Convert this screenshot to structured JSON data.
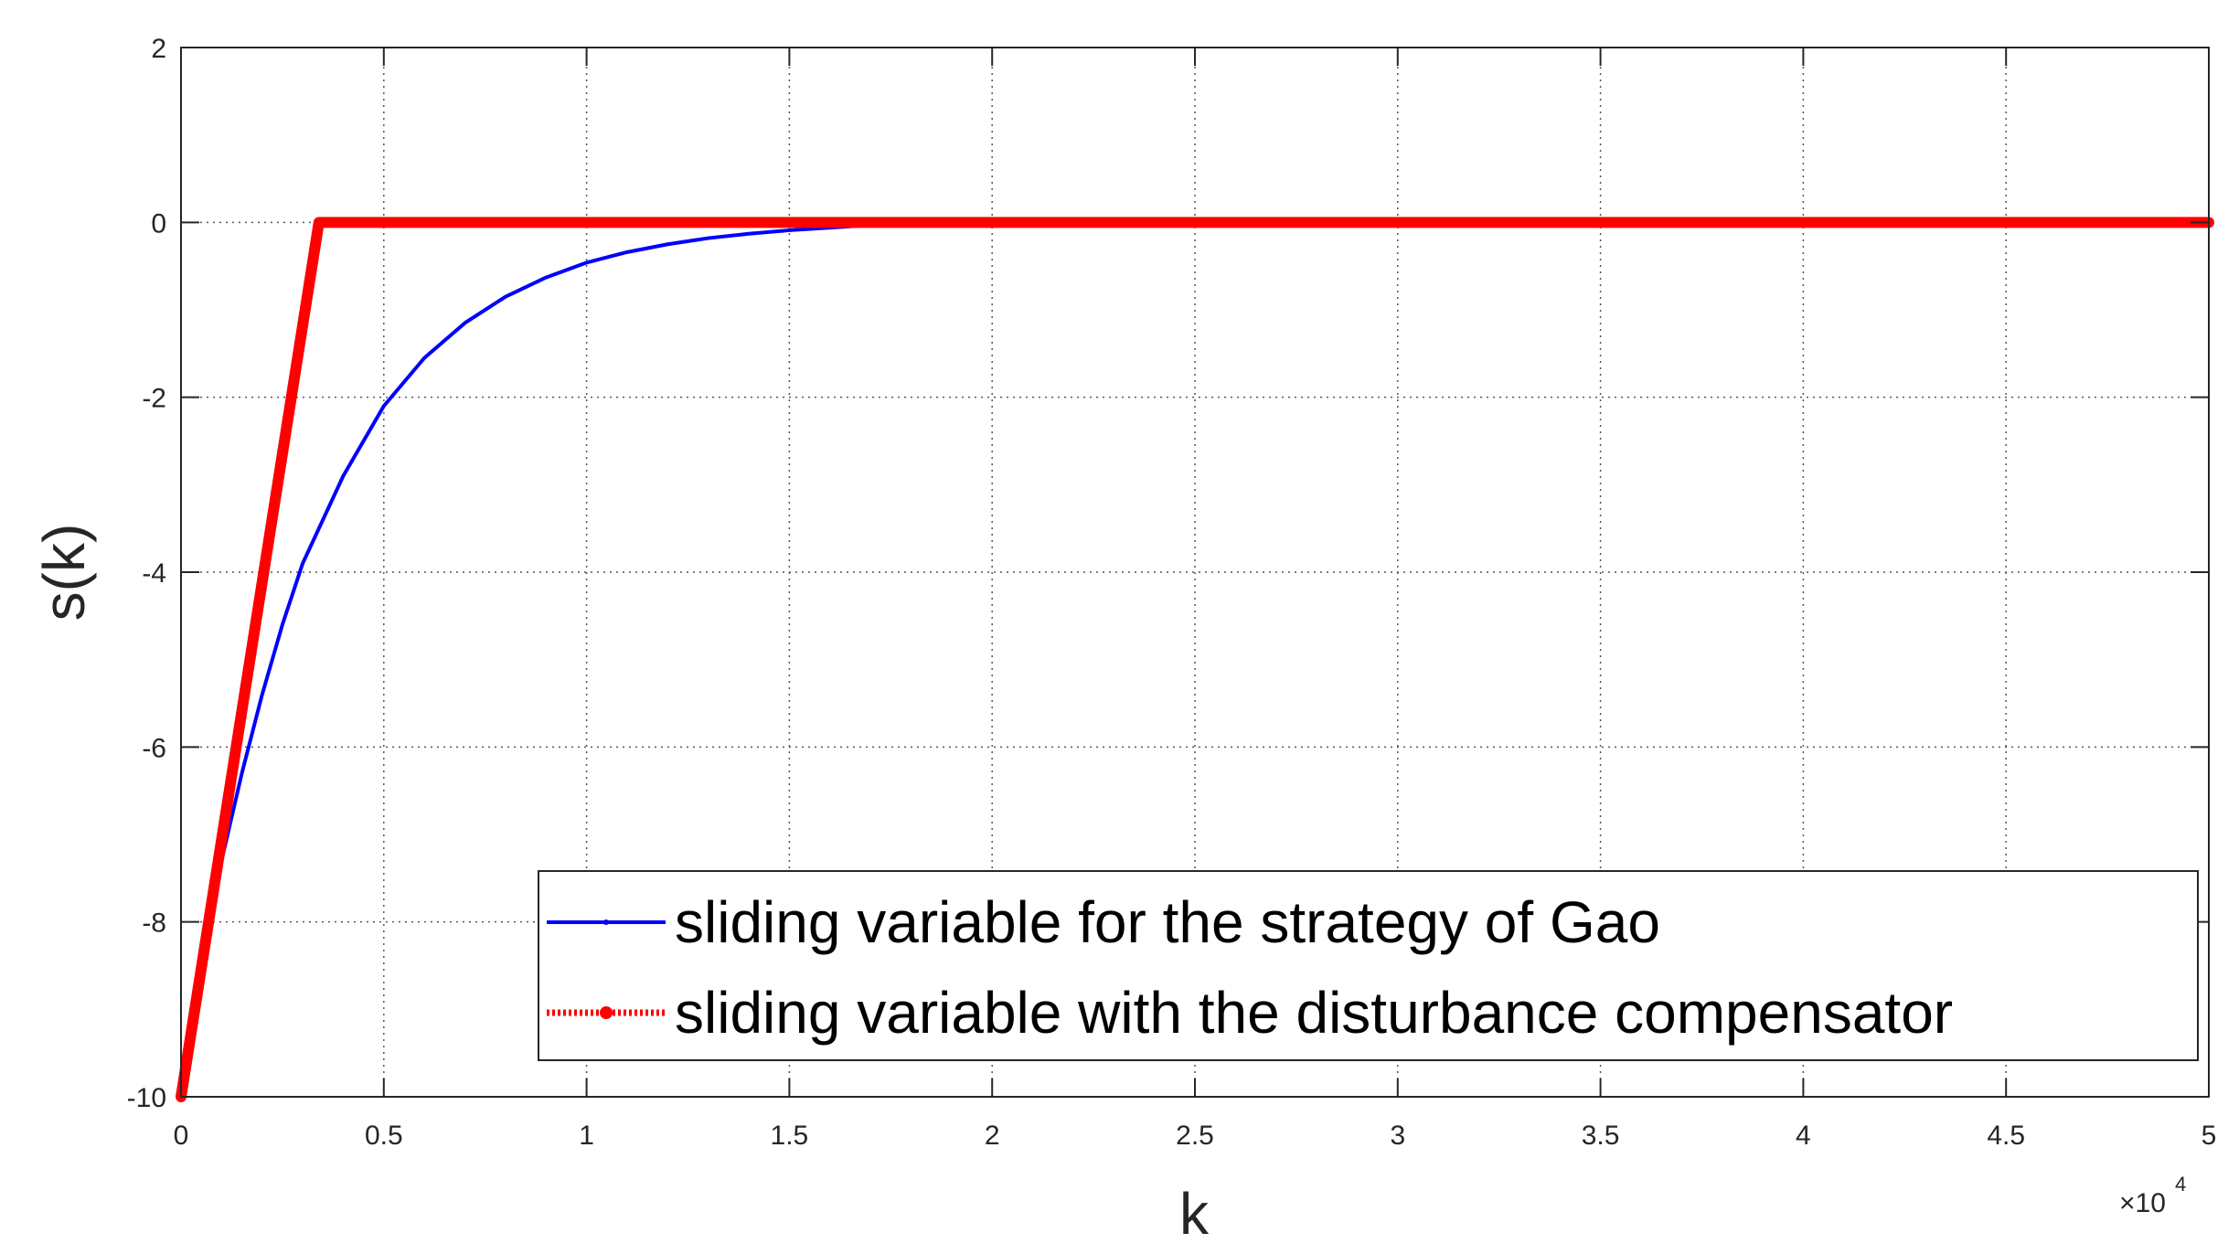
{
  "chart_data": {
    "type": "line",
    "xlabel": "k",
    "ylabel": "s(k)",
    "x_exponent_label": "×10",
    "x_exponent_power": "4",
    "xlim": [
      0,
      50000
    ],
    "ylim": [
      -10,
      2
    ],
    "grid": true,
    "legend_position": "bottom-right",
    "x_ticks": [
      {
        "value": 0,
        "label": "0"
      },
      {
        "value": 5000,
        "label": "0.5"
      },
      {
        "value": 10000,
        "label": "1"
      },
      {
        "value": 15000,
        "label": "1.5"
      },
      {
        "value": 20000,
        "label": "2"
      },
      {
        "value": 25000,
        "label": "2.5"
      },
      {
        "value": 30000,
        "label": "3"
      },
      {
        "value": 35000,
        "label": "3.5"
      },
      {
        "value": 40000,
        "label": "4"
      },
      {
        "value": 45000,
        "label": "4.5"
      },
      {
        "value": 50000,
        "label": "5"
      }
    ],
    "y_ticks": [
      {
        "value": 2,
        "label": "2"
      },
      {
        "value": 0,
        "label": "0"
      },
      {
        "value": -2,
        "label": "-2"
      },
      {
        "value": -4,
        "label": "-4"
      },
      {
        "value": -6,
        "label": "-6"
      },
      {
        "value": -8,
        "label": "-8"
      },
      {
        "value": -10,
        "label": "-10"
      }
    ],
    "series": [
      {
        "name": "sliding variable for the strategy of Gao",
        "color": "#0000ff",
        "x": [
          0,
          500,
          1000,
          1500,
          2000,
          2500,
          3000,
          4000,
          5000,
          6000,
          7000,
          8000,
          9000,
          10000,
          11000,
          12000,
          13000,
          14000,
          15000,
          16000,
          17000,
          18000,
          20000,
          50000
        ],
        "y": [
          -10,
          -8.6,
          -7.3,
          -6.3,
          -5.4,
          -4.6,
          -3.9,
          -2.9,
          -2.1,
          -1.55,
          -1.15,
          -0.85,
          -0.63,
          -0.46,
          -0.34,
          -0.25,
          -0.18,
          -0.13,
          -0.09,
          -0.06,
          -0.03,
          -0.01,
          0,
          0
        ]
      },
      {
        "name": "sliding variable with the disturbance compensator",
        "color": "#ff0000",
        "x": [
          0,
          3400,
          50000
        ],
        "y": [
          -10,
          0,
          0
        ]
      }
    ]
  }
}
